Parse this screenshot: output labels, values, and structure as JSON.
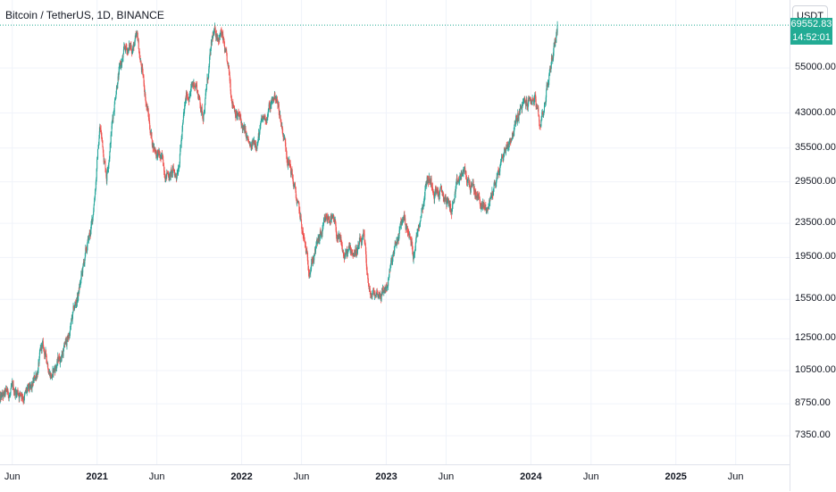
{
  "header": {
    "symbol_title": "Bitcoin / TetherUS, 1D, BINANCE",
    "currency_button": "USDT"
  },
  "last_price": {
    "value": "69552.83",
    "countdown": "14:52:01"
  },
  "colors": {
    "up": "#26a69a",
    "down": "#ef5350",
    "price_line": "#22ab94"
  },
  "chart_data": {
    "type": "candlestick",
    "y_scale": "log",
    "ylim": [
      6600,
      76000
    ],
    "price_ticks": [
      "55000.00",
      "43000.00",
      "35500.00",
      "29500.00",
      "23500.00",
      "19500.00",
      "15500.00",
      "12500.00",
      "10500.00",
      "8750.00",
      "7350.00"
    ],
    "time_ticks": [
      {
        "label": "Jun",
        "date": "2020-06-01",
        "bold": false
      },
      {
        "label": "2021",
        "date": "2021-01-01",
        "bold": true
      },
      {
        "label": "Jun",
        "date": "2021-06-01",
        "bold": false
      },
      {
        "label": "2022",
        "date": "2022-01-01",
        "bold": true
      },
      {
        "label": "Jun",
        "date": "2022-06-01",
        "bold": false
      },
      {
        "label": "2023",
        "date": "2023-01-01",
        "bold": true
      },
      {
        "label": "Jun",
        "date": "2023-06-01",
        "bold": false
      },
      {
        "label": "2024",
        "date": "2024-01-01",
        "bold": true
      },
      {
        "label": "Jun",
        "date": "2024-06-01",
        "bold": false
      },
      {
        "label": "2025",
        "date": "2025-01-01",
        "bold": true
      },
      {
        "label": "Jun",
        "date": "2025-06-01",
        "bold": false
      }
    ],
    "x_range": [
      "2020-05-01",
      "2025-10-15"
    ],
    "last_value": 69552.83,
    "anchors": [
      [
        "2020-05-01",
        8900
      ],
      [
        "2020-06-15",
        9400
      ],
      [
        "2020-07-20",
        9200
      ],
      [
        "2020-08-15",
        11800
      ],
      [
        "2020-09-10",
        10300
      ],
      [
        "2020-10-20",
        12500
      ],
      [
        "2020-11-15",
        16000
      ],
      [
        "2020-12-20",
        23500
      ],
      [
        "2021-01-08",
        40000
      ],
      [
        "2021-01-25",
        31000
      ],
      [
        "2021-02-20",
        52000
      ],
      [
        "2021-03-13",
        60000
      ],
      [
        "2021-04-13",
        63500
      ],
      [
        "2021-05-20",
        37000
      ],
      [
        "2021-06-22",
        31500
      ],
      [
        "2021-07-20",
        30500
      ],
      [
        "2021-08-15",
        47000
      ],
      [
        "2021-09-07",
        51000
      ],
      [
        "2021-09-25",
        42500
      ],
      [
        "2021-10-20",
        64000
      ],
      [
        "2021-11-10",
        68000
      ],
      [
        "2021-12-05",
        48000
      ],
      [
        "2022-01-24",
        34500
      ],
      [
        "2022-02-20",
        40000
      ],
      [
        "2022-03-28",
        47500
      ],
      [
        "2022-05-10",
        30000
      ],
      [
        "2022-06-18",
        18500
      ],
      [
        "2022-08-13",
        24500
      ],
      [
        "2022-09-15",
        19500
      ],
      [
        "2022-11-05",
        21000
      ],
      [
        "2022-11-21",
        15600
      ],
      [
        "2022-12-31",
        16500
      ],
      [
        "2023-02-15",
        24500
      ],
      [
        "2023-03-10",
        20000
      ],
      [
        "2023-04-14",
        30500
      ],
      [
        "2023-06-15",
        25500
      ],
      [
        "2023-07-13",
        31000
      ],
      [
        "2023-09-11",
        25000
      ],
      [
        "2023-10-25",
        34500
      ],
      [
        "2023-12-08",
        44000
      ],
      [
        "2024-01-11",
        46800
      ],
      [
        "2024-01-23",
        39000
      ],
      [
        "2024-02-15",
        52000
      ],
      [
        "2024-03-08",
        69552.83
      ]
    ]
  }
}
